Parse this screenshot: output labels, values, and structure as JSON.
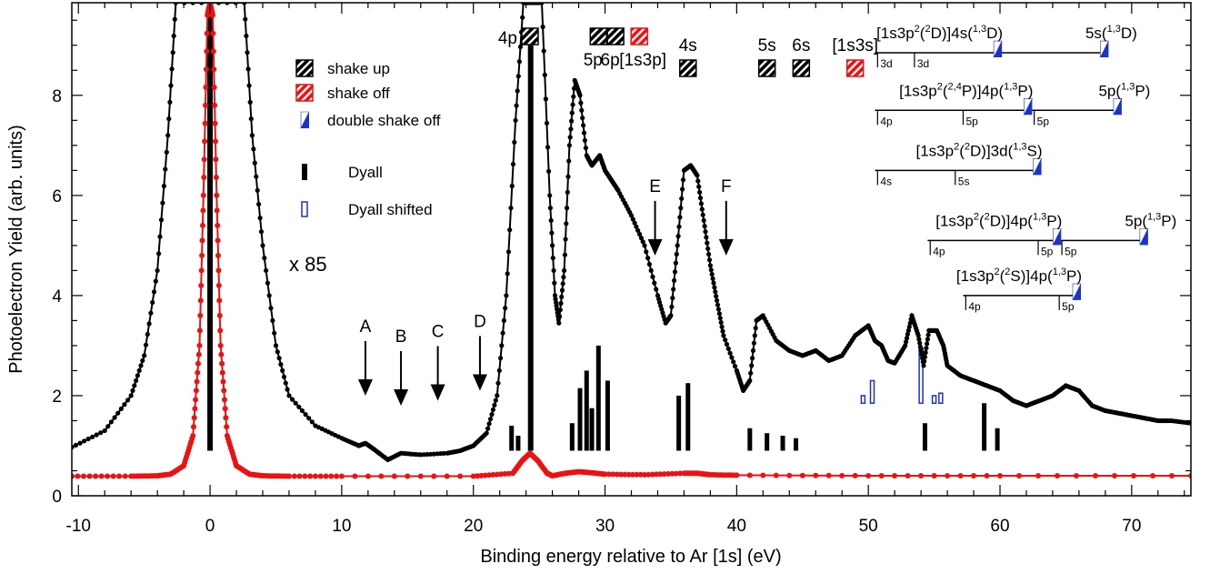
{
  "chart_data": {
    "type": "scatter",
    "title": "",
    "xlabel": "Binding energy relative to Ar [1s] (eV)",
    "ylabel": "Photoelectron Yield (arb. units)",
    "xlim": [
      -10.5,
      74.5
    ],
    "ylim": [
      0,
      9.85
    ],
    "xticks": [
      -10,
      0,
      10,
      20,
      30,
      40,
      50,
      60,
      70
    ],
    "yticks": [
      0,
      2,
      4,
      6,
      8
    ],
    "grid": false,
    "scale_note": "x 85",
    "series": [
      {
        "name": "",
        "color": "#000000",
        "x": [
          -10.5,
          -8,
          -6,
          -5,
          -4,
          -3.2,
          -2.6,
          2.6,
          3.2,
          4,
          5,
          6,
          8,
          10,
          11.3,
          11.8,
          12.5,
          13.5,
          14.5,
          16,
          18,
          19,
          20,
          21,
          21.8,
          22.5,
          23.2,
          23.8,
          24.3,
          25.2,
          25.8,
          26.2,
          26.5,
          26.9,
          27.3,
          27.7,
          28.1,
          28.6,
          29,
          29.6,
          30,
          30.5,
          31,
          32,
          33,
          34,
          34.6,
          35,
          35.5,
          36,
          36.5,
          37,
          37.5,
          38,
          38.5,
          39,
          40,
          40.5,
          41,
          41.5,
          42,
          43,
          44,
          45,
          46,
          47,
          48,
          49,
          50,
          50.5,
          51,
          51.5,
          52,
          52.8,
          53.3,
          53.8,
          54.2,
          54.6,
          55.2,
          55.7,
          56,
          57,
          58,
          59,
          60,
          61,
          62,
          63,
          64,
          65,
          66,
          67,
          68,
          69,
          70,
          71,
          72,
          73,
          74.5
        ],
        "y": [
          0.97,
          1.3,
          2.0,
          2.8,
          4.5,
          7.2,
          9.85,
          9.85,
          7.2,
          5.0,
          3.0,
          2.0,
          1.4,
          1.15,
          1.0,
          1.05,
          0.92,
          0.72,
          0.85,
          0.82,
          0.85,
          0.9,
          1.0,
          1.25,
          2.0,
          4.0,
          7.5,
          9.85,
          9.85,
          9.85,
          6.0,
          4.0,
          3.45,
          4.5,
          7.0,
          8.3,
          8.0,
          6.8,
          6.6,
          6.8,
          6.5,
          6.3,
          6.1,
          5.6,
          5.0,
          4.0,
          3.45,
          3.6,
          5.0,
          6.5,
          6.6,
          6.4,
          5.5,
          4.6,
          3.9,
          3.2,
          2.5,
          2.1,
          2.3,
          3.5,
          3.6,
          3.1,
          2.9,
          2.8,
          2.9,
          2.7,
          2.8,
          3.2,
          3.4,
          3.1,
          3.0,
          2.7,
          2.65,
          3.0,
          3.6,
          3.2,
          2.6,
          3.3,
          3.3,
          3.0,
          2.6,
          2.4,
          2.3,
          2.2,
          2.1,
          1.9,
          1.8,
          1.9,
          2.0,
          2.2,
          2.1,
          1.8,
          1.7,
          1.65,
          1.6,
          1.55,
          1.5,
          1.5,
          1.45
        ]
      },
      {
        "name": "",
        "color": "#ee1111",
        "x": [
          -10.5,
          -6,
          -4,
          -3,
          -2,
          -1.3,
          -0.8,
          -0.5,
          -0.2,
          0,
          0.2,
          0.5,
          0.8,
          1.3,
          2,
          3,
          4,
          6,
          10,
          20,
          23,
          23.7,
          24.3,
          24.9,
          25.6,
          26,
          27,
          28,
          29,
          30,
          33,
          36,
          37,
          38,
          40,
          50,
          60,
          74.5
        ],
        "y": [
          0.39,
          0.39,
          0.4,
          0.43,
          0.6,
          1.2,
          3.0,
          6.0,
          9.6,
          9.85,
          9.6,
          6.0,
          3.0,
          1.2,
          0.6,
          0.43,
          0.4,
          0.39,
          0.39,
          0.39,
          0.45,
          0.7,
          0.85,
          0.7,
          0.45,
          0.4,
          0.45,
          0.48,
          0.46,
          0.43,
          0.42,
          0.45,
          0.45,
          0.42,
          0.41,
          0.4,
          0.4,
          0.4
        ]
      }
    ],
    "dyall_bars": {
      "color": "#000000",
      "x": [
        0,
        22.9,
        23.4,
        24.35,
        27.5,
        28.1,
        28.6,
        29.0,
        29.5,
        30.2,
        35.6,
        36.3,
        41,
        42.3,
        43.5,
        44.5,
        54.3,
        58.8,
        59.8
      ],
      "y": [
        9.85,
        1.4,
        1.2,
        9.0,
        1.45,
        2.15,
        2.5,
        1.75,
        3.0,
        2.3,
        2.0,
        2.25,
        1.35,
        1.25,
        1.2,
        1.15,
        1.45,
        1.85,
        1.35
      ]
    },
    "dyall_shifted_bars": {
      "color": "#1a33cc",
      "x": [
        49.6,
        50.3,
        54.0,
        55.0,
        55.5
      ],
      "y": [
        2.0,
        2.3,
        2.95,
        2.0,
        2.05
      ]
    },
    "legend": [
      {
        "label": "shake up",
        "marker": "hatched-black"
      },
      {
        "label": "shake off",
        "marker": "hatched-red"
      },
      {
        "label": "double shake off",
        "marker": "half-blue"
      },
      {
        "label": "Dyall",
        "marker": "bar-black"
      },
      {
        "label": "Dyall shifted",
        "marker": "bar-blue-open"
      }
    ],
    "arrows": [
      {
        "label": "A",
        "x": 11.8,
        "y": 2.0
      },
      {
        "label": "B",
        "x": 14.5,
        "y": 1.8
      },
      {
        "label": "C",
        "x": 17.3,
        "y": 1.9
      },
      {
        "label": "D",
        "x": 20.5,
        "y": 2.1
      },
      {
        "label": "E",
        "x": 33.8,
        "y": 4.8
      },
      {
        "label": "F",
        "x": 39.2,
        "y": 4.8
      }
    ],
    "top_markers": [
      {
        "label": "4p",
        "x": 24.3,
        "kind": "shake-up",
        "row": 0
      },
      {
        "label": "5p",
        "x": 29.5,
        "kind": "shake-up",
        "row": 0
      },
      {
        "label": "6p",
        "x": 30.8,
        "kind": "shake-up",
        "row": 0
      },
      {
        "label": "[1s3p]",
        "x": 32.6,
        "kind": "shake-off",
        "row": 0
      },
      {
        "label": "4s",
        "x": 36.3,
        "kind": "shake-up",
        "row": 1
      },
      {
        "label": "5s",
        "x": 42.3,
        "kind": "shake-up",
        "row": 1
      },
      {
        "label": "6s",
        "x": 44.9,
        "kind": "shake-up",
        "row": 1
      },
      {
        "label": "[1s3s]",
        "x": 49.0,
        "kind": "shake-off",
        "row": 1
      }
    ],
    "threshold_ladders": [
      {
        "title_pre": "[1s3p",
        "title_sup1": "2",
        "title_mid": "(",
        "title_sup2": "2",
        "title_post": "D)]4s(",
        "title_sup3": "1,3",
        "title_end": "D)",
        "extra_title": "5s(",
        "extra_sup": "1,3",
        "extra_end": "D)",
        "line_y": 8.85,
        "x0": 50.5,
        "x1": 68.0,
        "ticks": [
          {
            "label": "3d",
            "x": 50.7
          },
          {
            "label": "3d",
            "x": 53.5
          }
        ],
        "marks": [
          59.8,
          67.9
        ]
      },
      {
        "title_pre": "[1s3p",
        "title_sup1": "2",
        "title_mid": "(",
        "title_sup2": "2,4",
        "title_post": "P)]4p(",
        "title_sup3": "1,3",
        "title_end": "P)",
        "extra_title": "5p(",
        "extra_sup": "1,3",
        "extra_end": "P)",
        "line_y": 7.7,
        "x0": 50.5,
        "x1": 68.9,
        "ticks": [
          {
            "label": "4p",
            "x": 50.7
          },
          {
            "label": "5p",
            "x": 57.2
          },
          {
            "label": "5p",
            "x": 62.6
          }
        ],
        "marks": [
          62.1,
          68.9
        ]
      },
      {
        "title_pre": "[1s3p",
        "title_sup1": "2",
        "title_mid": "(",
        "title_sup2": "2",
        "title_post": "D)]3d(",
        "title_sup3": "1,3",
        "title_end": "S)",
        "extra_title": "",
        "extra_sup": "",
        "extra_end": "",
        "line_y": 6.5,
        "x0": 50.5,
        "x1": 62.8,
        "ticks": [
          {
            "label": "4s",
            "x": 50.7
          },
          {
            "label": "5s",
            "x": 56.6
          }
        ],
        "marks": [
          62.8
        ]
      },
      {
        "title_pre": "[1s3p",
        "title_sup1": "2",
        "title_mid": "(",
        "title_sup2": "2",
        "title_post": "D)]4p(",
        "title_sup3": "1,3",
        "title_end": "P)",
        "extra_title": "5p(",
        "extra_sup": "1,3",
        "extra_end": "P)",
        "line_y": 5.1,
        "x0": 54.5,
        "x1": 70.9,
        "ticks": [
          {
            "label": "4p",
            "x": 54.7
          },
          {
            "label": "5p",
            "x": 62.9
          },
          {
            "label": "5p",
            "x": 64.7
          }
        ],
        "marks": [
          64.3,
          70.9
        ]
      },
      {
        "title_pre": "[1s3p",
        "title_sup1": "2",
        "title_mid": "(",
        "title_sup2": "2",
        "title_post": "S)]4p(",
        "title_sup3": "1,3",
        "title_end": "P)",
        "extra_title": "",
        "extra_sup": "",
        "extra_end": "",
        "line_y": 4.0,
        "x0": 57.2,
        "x1": 65.8,
        "ticks": [
          {
            "label": "4p",
            "x": 57.4
          },
          {
            "label": "5p",
            "x": 64.5
          }
        ],
        "marks": [
          65.8
        ]
      }
    ]
  }
}
